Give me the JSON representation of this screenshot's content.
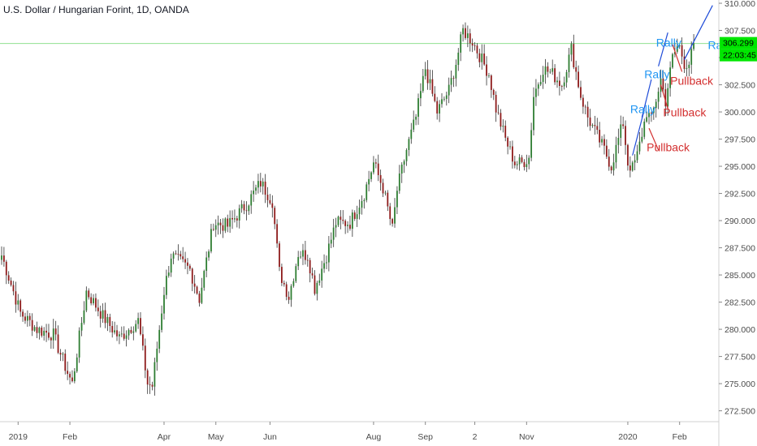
{
  "header": {
    "title": "U.S. Dollar / Hungarian Forint, 1D, OANDA"
  },
  "colors": {
    "up": "#2e7d32",
    "down": "#8e1b1b",
    "wick": "#333333",
    "axis_text": "#4a4a4a",
    "hline": "#90e090",
    "price_tag_bg": "#00e600",
    "rally_text": "#2196f3",
    "pullback_text": "#d32f2f",
    "trend_line": "#1e4bd8"
  },
  "chart_data": {
    "type": "candlestick",
    "title": "U.S. Dollar / Hungarian Forint, 1D, OANDA",
    "ylabel": "",
    "xlabel": "",
    "ylim": [
      271.5,
      310.3
    ],
    "grid": false,
    "y_ticks": [
      "272.500",
      "275.000",
      "277.500",
      "280.000",
      "282.500",
      "285.000",
      "287.500",
      "290.000",
      "292.500",
      "295.000",
      "297.500",
      "300.000",
      "302.500",
      "305.000",
      "307.500",
      "310.000"
    ],
    "x_ticks": [
      {
        "label": "2019",
        "bar": 7
      },
      {
        "label": "Feb",
        "bar": 29
      },
      {
        "label": "Apr",
        "bar": 69
      },
      {
        "label": "May",
        "bar": 91
      },
      {
        "label": "Jun",
        "bar": 114
      },
      {
        "label": "Aug",
        "bar": 158
      },
      {
        "label": "Sep",
        "bar": 180
      },
      {
        "label": "2",
        "bar": 201
      },
      {
        "label": "Nov",
        "bar": 223
      },
      {
        "label": "2020",
        "bar": 266
      },
      {
        "label": "Feb",
        "bar": 288
      }
    ],
    "price_keypoints": [
      [
        0,
        286.8
      ],
      [
        8,
        281.5
      ],
      [
        15,
        280.0
      ],
      [
        22,
        279.5
      ],
      [
        28,
        276.0
      ],
      [
        30,
        275.0
      ],
      [
        36,
        283.5
      ],
      [
        43,
        281.2
      ],
      [
        50,
        279.2
      ],
      [
        58,
        280.8
      ],
      [
        62,
        275.0
      ],
      [
        64,
        274.8
      ],
      [
        69,
        283.5
      ],
      [
        72,
        286.8
      ],
      [
        80,
        285.5
      ],
      [
        84,
        282.8
      ],
      [
        90,
        289.8
      ],
      [
        96,
        289.5
      ],
      [
        104,
        291.5
      ],
      [
        110,
        293.5
      ],
      [
        115,
        291.8
      ],
      [
        118,
        285.3
      ],
      [
        122,
        283.0
      ],
      [
        126,
        287.0
      ],
      [
        130,
        286.8
      ],
      [
        133,
        283.8
      ],
      [
        138,
        286.8
      ],
      [
        142,
        289.8
      ],
      [
        148,
        289.8
      ],
      [
        154,
        292.5
      ],
      [
        158,
        295.3
      ],
      [
        162,
        293.0
      ],
      [
        166,
        289.2
      ],
      [
        168,
        292.8
      ],
      [
        172,
        296.5
      ],
      [
        176,
        299.5
      ],
      [
        180,
        304.0
      ],
      [
        185,
        300.0
      ],
      [
        190,
        302.0
      ],
      [
        193,
        304.5
      ],
      [
        196,
        307.5
      ],
      [
        200,
        306.5
      ],
      [
        203,
        305.2
      ],
      [
        207,
        303.5
      ],
      [
        210,
        300.3
      ],
      [
        214,
        297.5
      ],
      [
        218,
        295.3
      ],
      [
        221,
        295.3
      ],
      [
        224,
        295.8
      ],
      [
        226,
        301.5
      ],
      [
        230,
        304.0
      ],
      [
        234,
        303.5
      ],
      [
        238,
        302.5
      ],
      [
        242,
        305.8
      ],
      [
        246,
        301.5
      ],
      [
        249,
        299.5
      ],
      [
        252,
        298.2
      ],
      [
        256,
        296.5
      ],
      [
        259,
        295.0
      ],
      [
        262,
        297.5
      ],
      [
        264,
        299.0
      ],
      [
        266,
        295.3
      ],
      [
        268,
        294.8
      ],
      [
        270,
        296.0
      ],
      [
        274,
        300.0
      ],
      [
        276,
        299.3
      ],
      [
        280,
        303.0
      ],
      [
        282,
        301.0
      ],
      [
        285,
        305.0
      ],
      [
        287,
        306.0
      ],
      [
        288,
        306.0
      ],
      [
        290,
        304.5
      ],
      [
        292,
        304.5
      ],
      [
        294,
        306.0
      ]
    ],
    "n_bars": 295,
    "current_price": 306.299,
    "current_price_label": "306.299",
    "countdown_label": "22:03:45",
    "hline_value": 306.299,
    "annotations": [
      {
        "text": "Rally",
        "bar": 278,
        "value": 306.0,
        "kind": "rally"
      },
      {
        "text": "Rally",
        "bar": 273,
        "value": 303.1,
        "kind": "rally"
      },
      {
        "text": "Rally",
        "bar": 267,
        "value": 299.9,
        "kind": "rally"
      },
      {
        "text": "Rally ???",
        "bar": 300,
        "value": 305.8,
        "kind": "rally"
      },
      {
        "text": "Pullback",
        "bar": 284,
        "value": 302.5,
        "kind": "pullback"
      },
      {
        "text": "Pullback",
        "bar": 281,
        "value": 299.6,
        "kind": "pullback"
      },
      {
        "text": "Pullback",
        "bar": 274,
        "value": 296.4,
        "kind": "pullback"
      }
    ],
    "trend_lines": [
      {
        "from": [
          268,
          296.0
        ],
        "to": [
          273,
          300.2
        ],
        "color": "blue"
      },
      {
        "from": [
          272,
          299.5
        ],
        "to": [
          276,
          303.0
        ],
        "color": "blue"
      },
      {
        "from": [
          279,
          304.2
        ],
        "to": [
          283,
          307.3
        ],
        "color": "blue"
      },
      {
        "from": [
          290,
          304.8
        ],
        "to": [
          302,
          309.8
        ],
        "color": "blue"
      },
      {
        "from": [
          275,
          298.5
        ],
        "to": [
          279,
          296.5
        ],
        "color": "red"
      },
      {
        "from": [
          280,
          302.5
        ],
        "to": [
          283,
          300.3
        ],
        "color": "red"
      },
      {
        "from": [
          285,
          306.2
        ],
        "to": [
          289,
          303.7
        ],
        "color": "red"
      }
    ]
  }
}
